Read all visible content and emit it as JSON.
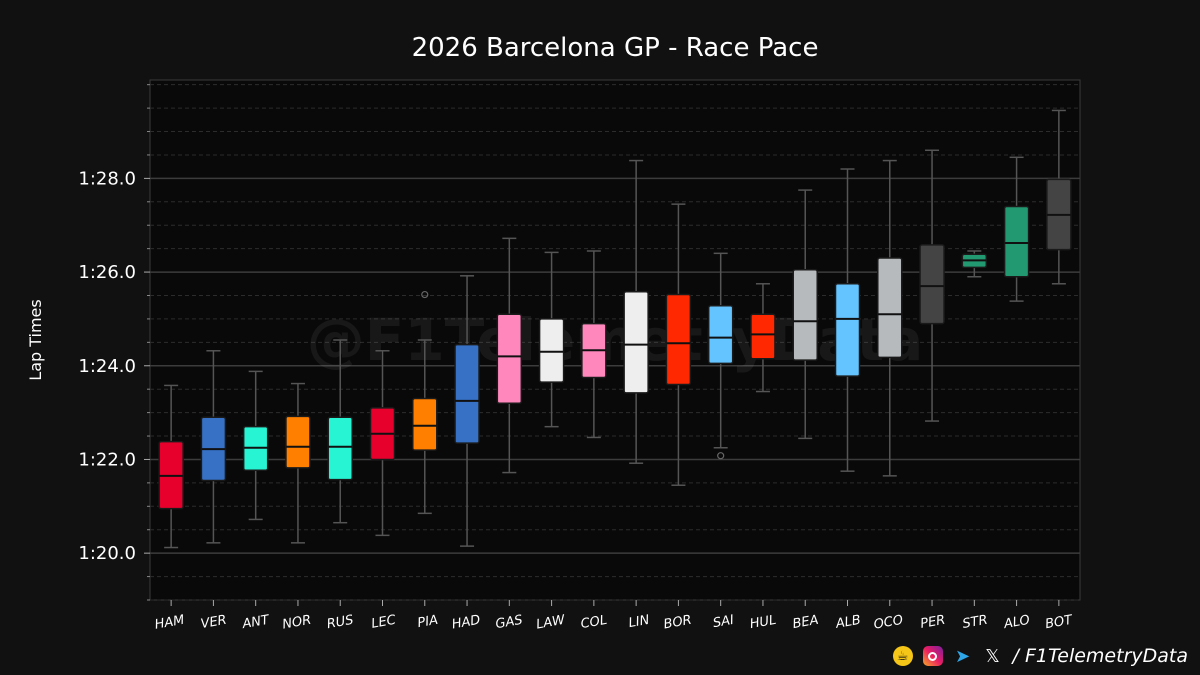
{
  "chart_data": {
    "type": "box",
    "title": "2026 Barcelona GP - Race Pace",
    "ylabel": "Lap Times",
    "ylim": [
      79.0,
      90.1
    ],
    "yticks": [
      80,
      82,
      84,
      86,
      88
    ],
    "ytick_labels": [
      "1:20.0",
      "1:22.0",
      "1:24.0",
      "1:26.0",
      "1:28.0"
    ],
    "grid": "horizontal",
    "watermark": "@F1TelemetryData",
    "categories": [
      "HAM",
      "VER",
      "ANT",
      "NOR",
      "RUS",
      "LEC",
      "PIA",
      "HAD",
      "GAS",
      "LAW",
      "COL",
      "LIN",
      "BOR",
      "SAI",
      "HUL",
      "BEA",
      "ALB",
      "OCO",
      "PER",
      "STR",
      "ALO",
      "BOT"
    ],
    "boxes": [
      {
        "driver": "HAM",
        "color": "#e8002d",
        "whisker_low": 80.12,
        "q1": 80.95,
        "median": 81.65,
        "q3": 82.38,
        "whisker_high": 83.58,
        "outliers": []
      },
      {
        "driver": "VER",
        "color": "#3671c6",
        "whisker_low": 80.22,
        "q1": 81.55,
        "median": 82.22,
        "q3": 82.9,
        "whisker_high": 84.32,
        "outliers": []
      },
      {
        "driver": "ANT",
        "color": "#27f4d2",
        "whisker_low": 80.72,
        "q1": 81.77,
        "median": 82.25,
        "q3": 82.7,
        "whisker_high": 83.88,
        "outliers": []
      },
      {
        "driver": "NOR",
        "color": "#ff8000",
        "whisker_low": 80.22,
        "q1": 81.82,
        "median": 82.27,
        "q3": 82.92,
        "whisker_high": 83.62,
        "outliers": []
      },
      {
        "driver": "RUS",
        "color": "#27f4d2",
        "whisker_low": 80.65,
        "q1": 81.57,
        "median": 82.27,
        "q3": 82.9,
        "whisker_high": 84.55,
        "outliers": []
      },
      {
        "driver": "LEC",
        "color": "#e8002d",
        "whisker_low": 80.38,
        "q1": 82.0,
        "median": 82.55,
        "q3": 83.1,
        "whisker_high": 84.32,
        "outliers": []
      },
      {
        "driver": "PIA",
        "color": "#ff8000",
        "whisker_low": 80.85,
        "q1": 82.2,
        "median": 82.72,
        "q3": 83.3,
        "whisker_high": 84.55,
        "outliers": [
          85.52
        ]
      },
      {
        "driver": "HAD",
        "color": "#3671c6",
        "whisker_low": 80.15,
        "q1": 82.35,
        "median": 83.25,
        "q3": 84.45,
        "whisker_high": 85.92,
        "outliers": []
      },
      {
        "driver": "GAS",
        "color": "#ff87bc",
        "whisker_low": 81.72,
        "q1": 83.2,
        "median": 84.2,
        "q3": 85.1,
        "whisker_high": 86.72,
        "outliers": []
      },
      {
        "driver": "LAW",
        "color": "#eeeeee",
        "whisker_low": 82.7,
        "q1": 83.65,
        "median": 84.3,
        "q3": 85.0,
        "whisker_high": 86.42,
        "outliers": []
      },
      {
        "driver": "COL",
        "color": "#ff87bc",
        "whisker_low": 82.47,
        "q1": 83.75,
        "median": 84.33,
        "q3": 84.9,
        "whisker_high": 86.45,
        "outliers": []
      },
      {
        "driver": "LIN",
        "color": "#eeeeee",
        "whisker_low": 81.92,
        "q1": 83.42,
        "median": 84.45,
        "q3": 85.58,
        "whisker_high": 88.38,
        "outliers": []
      },
      {
        "driver": "BOR",
        "color": "#ff2800",
        "whisker_low": 81.45,
        "q1": 83.6,
        "median": 84.48,
        "q3": 85.52,
        "whisker_high": 87.45,
        "outliers": []
      },
      {
        "driver": "SAI",
        "color": "#64c4ff",
        "whisker_low": 82.25,
        "q1": 84.05,
        "median": 84.6,
        "q3": 85.28,
        "whisker_high": 86.4,
        "outliers": [
          82.08
        ]
      },
      {
        "driver": "HUL",
        "color": "#ff2800",
        "whisker_low": 83.45,
        "q1": 84.15,
        "median": 84.67,
        "q3": 85.1,
        "whisker_high": 85.75,
        "outliers": []
      },
      {
        "driver": "BEA",
        "color": "#b6babd",
        "whisker_low": 82.45,
        "q1": 84.12,
        "median": 84.95,
        "q3": 86.05,
        "whisker_high": 87.75,
        "outliers": []
      },
      {
        "driver": "ALB",
        "color": "#64c4ff",
        "whisker_low": 81.75,
        "q1": 83.78,
        "median": 85.0,
        "q3": 85.75,
        "whisker_high": 88.2,
        "outliers": []
      },
      {
        "driver": "OCO",
        "color": "#b6babd",
        "whisker_low": 81.65,
        "q1": 84.18,
        "median": 85.1,
        "q3": 86.3,
        "whisker_high": 88.38,
        "outliers": []
      },
      {
        "driver": "PER",
        "color": "#444444",
        "whisker_low": 82.82,
        "q1": 84.9,
        "median": 85.7,
        "q3": 86.58,
        "whisker_high": 88.6,
        "outliers": []
      },
      {
        "driver": "STR",
        "color": "#229971",
        "whisker_low": 85.9,
        "q1": 86.1,
        "median": 86.25,
        "q3": 86.38,
        "whisker_high": 86.45,
        "outliers": []
      },
      {
        "driver": "ALO",
        "color": "#229971",
        "whisker_low": 85.38,
        "q1": 85.9,
        "median": 86.62,
        "q3": 87.4,
        "whisker_high": 88.45,
        "outliers": []
      },
      {
        "driver": "BOT",
        "color": "#444444",
        "whisker_low": 85.75,
        "q1": 86.48,
        "median": 87.22,
        "q3": 87.98,
        "whisker_high": 89.45,
        "outliers": []
      }
    ]
  },
  "footer": {
    "handle": "/ F1TelemetryData",
    "icons": [
      "coffee-cup-icon",
      "instagram-icon",
      "telegram-icon",
      "x-logo-icon"
    ]
  }
}
